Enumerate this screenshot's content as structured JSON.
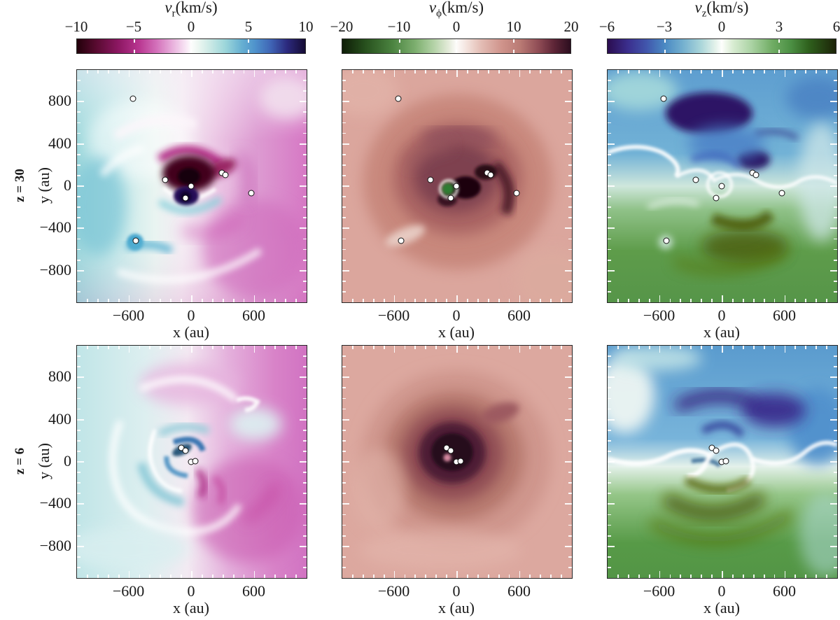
{
  "chart_data": {
    "type": "heatmap",
    "layout": "2 rows x 3 columns of face-on velocity maps from a disc simulation, with sink particles overplotted as white dots",
    "columns": [
      {
        "quantity": "v_r",
        "title": "vr(km/s)",
        "colorbar_range": [
          -10,
          10
        ],
        "colorbar_ticks": [
          -10,
          -5,
          0,
          5,
          10
        ],
        "diverging_colors": "magenta (negative) to white to blue/purple (positive)"
      },
      {
        "quantity": "v_phi",
        "title": "vϕ(km/s)",
        "colorbar_range": [
          -20,
          20
        ],
        "colorbar_ticks": [
          -20,
          -10,
          0,
          10,
          20
        ],
        "diverging_colors": "green (negative) to white to rose/dark maroon (positive)"
      },
      {
        "quantity": "v_z",
        "title": "vz(km/s)",
        "colorbar_range": [
          -6,
          6
        ],
        "colorbar_ticks": [
          -6,
          -3,
          0,
          3,
          6
        ],
        "diverging_colors": "purple/blue (negative) to white to green/dark olive (positive)"
      }
    ],
    "rows": [
      {
        "label": "z = 30"
      },
      {
        "label": "z = 6"
      }
    ],
    "xlabel": "x (au)",
    "ylabel": "y (au)",
    "x_ticks": [
      -600,
      0,
      600
    ],
    "y_ticks": [
      800,
      400,
      0,
      -400,
      -800
    ],
    "axis_extent_au": [
      -1100,
      1100
    ],
    "sink_particles_au": {
      "z30": [
        [
          -565,
          826
        ],
        [
          -255,
          60
        ],
        [
          -7,
          3
        ],
        [
          -60,
          -112
        ],
        [
          288,
          126
        ],
        [
          322,
          106
        ],
        [
          570,
          -66
        ],
        [
          -537,
          -517
        ]
      ],
      "z6": [
        [
          -100,
          133
        ],
        [
          -60,
          106
        ],
        [
          -7,
          0
        ],
        [
          33,
          7
        ]
      ]
    }
  },
  "figure": {
    "background": "#ffffff",
    "axis": {
      "xlabel": "x (au)",
      "ylabel": "y (au)",
      "extent_au": 1100,
      "minor_tick_step_au": 100,
      "x_ticks": [
        {
          "label": "−600",
          "au": -600
        },
        {
          "label": "0",
          "au": 0
        },
        {
          "label": "600",
          "au": 600
        }
      ],
      "y_ticks": [
        {
          "label": "800",
          "au": 800
        },
        {
          "label": "400",
          "au": 400
        },
        {
          "label": "0",
          "au": 0
        },
        {
          "label": "−400",
          "au": -400
        },
        {
          "label": "−800",
          "au": -800
        }
      ],
      "tick_color": "#ffffff",
      "border_color": "#262626"
    },
    "rows": [
      {
        "label": "z = 30"
      },
      {
        "label": "z = 6"
      }
    ],
    "colorbars": [
      {
        "var": "v",
        "sub": "r",
        "unit": "(km/s)",
        "tick_labels": [
          "−10",
          "−5",
          "0",
          "5",
          "10"
        ],
        "cmap": [
          [
            0,
            "#22000a"
          ],
          [
            8,
            "#560a2e"
          ],
          [
            18,
            "#8c1762"
          ],
          [
            27,
            "#b83590"
          ],
          [
            35,
            "#d472bb"
          ],
          [
            42,
            "#e9b2dd"
          ],
          [
            48,
            "#f9e9f6"
          ],
          [
            50,
            "#fdfdfd"
          ],
          [
            53,
            "#eef7f2"
          ],
          [
            58,
            "#cdeae6"
          ],
          [
            65,
            "#9cd6da"
          ],
          [
            72,
            "#68b1d2"
          ],
          [
            78,
            "#4f93cc"
          ],
          [
            85,
            "#3f64b5"
          ],
          [
            92,
            "#2c2a7e"
          ],
          [
            100,
            "#150b34"
          ]
        ]
      },
      {
        "var": "v",
        "sub": "ϕ",
        "unit": "(km/s)",
        "tick_labels": [
          "−20",
          "−10",
          "0",
          "10",
          "20"
        ],
        "cmap": [
          [
            0,
            "#0e1d07"
          ],
          [
            10,
            "#27501d"
          ],
          [
            22,
            "#4b8340"
          ],
          [
            32,
            "#7daf6f"
          ],
          [
            40,
            "#b3d2a6"
          ],
          [
            47,
            "#e7eddd"
          ],
          [
            50,
            "#fdfcfa"
          ],
          [
            54,
            "#f5e6e1"
          ],
          [
            61,
            "#e3bcb4"
          ],
          [
            70,
            "#cf938b"
          ],
          [
            78,
            "#b97a74"
          ],
          [
            86,
            "#8f4c55"
          ],
          [
            93,
            "#5c2436"
          ],
          [
            100,
            "#2c0e1f"
          ]
        ]
      },
      {
        "var": "v",
        "sub": "z",
        "unit": "(km/s)",
        "tick_labels": [
          "−6",
          "−3",
          "0",
          "3",
          "6"
        ],
        "cmap": [
          [
            0,
            "#2b0d50"
          ],
          [
            9,
            "#3b2f8e"
          ],
          [
            17,
            "#4156ac"
          ],
          [
            25,
            "#4a89c3"
          ],
          [
            33,
            "#74b0cf"
          ],
          [
            41,
            "#abd6da"
          ],
          [
            47,
            "#e2f1ea"
          ],
          [
            50,
            "#fdfefc"
          ],
          [
            55,
            "#d8ecd2"
          ],
          [
            63,
            "#abd3a4"
          ],
          [
            72,
            "#71ad65"
          ],
          [
            80,
            "#4d9145"
          ],
          [
            88,
            "#2f611d"
          ],
          [
            100,
            "#1c2308"
          ]
        ]
      }
    ],
    "sinks": {
      "row1_au": [
        [
          -565,
          826
        ],
        [
          -255,
          60
        ],
        [
          -7,
          3
        ],
        [
          -60,
          -112
        ],
        [
          288,
          126
        ],
        [
          322,
          106
        ],
        [
          570,
          -66
        ],
        [
          -537,
          -517
        ]
      ],
      "row2_au": [
        [
          -100,
          133
        ],
        [
          -60,
          106
        ],
        [
          -7,
          0
        ],
        [
          33,
          7
        ]
      ],
      "dot_fill": "#ffffff",
      "dot_stroke": "#101010"
    }
  }
}
